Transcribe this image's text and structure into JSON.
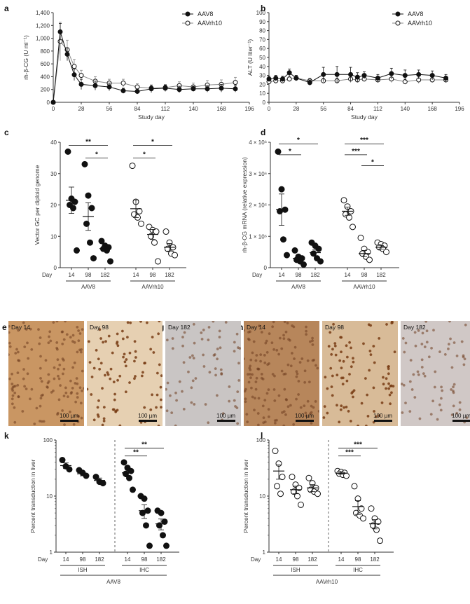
{
  "panel_labels": {
    "a": "a",
    "b": "b",
    "c": "c",
    "d": "d",
    "e": "e",
    "f": "f",
    "g": "g",
    "h": "h",
    "i": "i",
    "j": "j",
    "k": "k",
    "l": "l"
  },
  "micrographs": [
    {
      "letter": "e",
      "label": "Day 14",
      "scale": "100 µm",
      "tone": "#c99663"
    },
    {
      "letter": "f",
      "label": "Day 98",
      "scale": "100 µm",
      "tone": "#e6d0b2"
    },
    {
      "letter": "g",
      "label": "Day 182",
      "scale": "100 µm",
      "tone": "#c9c5c4"
    },
    {
      "letter": "h",
      "label": "Day 14",
      "scale": "100 µm",
      "tone": "#b7865b"
    },
    {
      "letter": "i",
      "label": "Day 98",
      "scale": "100 µm",
      "tone": "#d8bb98"
    },
    {
      "letter": "j",
      "label": "Day 182",
      "scale": "100 µm",
      "tone": "#d0c8c6"
    }
  ],
  "chart_data": [
    {
      "id": "a",
      "type": "line",
      "ylabel": "rh-β-CG (U ml⁻¹)",
      "xlabel": "Study day",
      "xlim": [
        0,
        196
      ],
      "ylim": [
        0,
        1400
      ],
      "xticks": [
        "0",
        "28",
        "56",
        "84",
        "112",
        "140",
        "168",
        "196"
      ],
      "yticks": [
        "0",
        "200",
        "400",
        "600",
        "800",
        "1,000",
        "1,200",
        "1,400"
      ],
      "legend": [
        "AAV8",
        "AAVrh10"
      ],
      "series": [
        {
          "name": "AAV8",
          "filled": true,
          "x": [
            0,
            7,
            14,
            21,
            28,
            42,
            56,
            70,
            84,
            98,
            112,
            126,
            140,
            154,
            168,
            182
          ],
          "y": [
            0,
            1100,
            750,
            430,
            280,
            260,
            240,
            180,
            170,
            210,
            220,
            200,
            210,
            210,
            220,
            210
          ],
          "err": [
            0,
            130,
            100,
            90,
            80,
            70,
            60,
            40,
            40,
            60,
            50,
            50,
            40,
            50,
            60,
            50
          ]
        },
        {
          "name": "AAVrh10",
          "filled": false,
          "x": [
            0,
            7,
            14,
            21,
            28,
            42,
            56,
            70,
            84,
            98,
            112,
            126,
            140,
            154,
            168,
            182
          ],
          "y": [
            0,
            950,
            820,
            560,
            420,
            330,
            300,
            300,
            240,
            220,
            230,
            260,
            240,
            270,
            280,
            310
          ],
          "err": [
            0,
            300,
            150,
            110,
            80,
            70,
            60,
            60,
            50,
            50,
            50,
            60,
            60,
            70,
            70,
            80
          ]
        }
      ]
    },
    {
      "id": "b",
      "type": "line",
      "ylabel": "ALT (U liter⁻¹)",
      "xlabel": "Study day",
      "xlim": [
        0,
        196
      ],
      "ylim": [
        0,
        100
      ],
      "xticks": [
        "0",
        "28",
        "56",
        "84",
        "112",
        "140",
        "168",
        "196"
      ],
      "yticks": [
        "0",
        "10",
        "20",
        "30",
        "40",
        "50",
        "60",
        "70",
        "80",
        "90",
        "100"
      ],
      "legend": [
        "AAV8",
        "AAVrh10"
      ],
      "series": [
        {
          "name": "AAV8",
          "filled": true,
          "x": [
            0,
            7,
            14,
            21,
            28,
            42,
            56,
            70,
            84,
            91,
            98,
            112,
            126,
            140,
            154,
            168,
            182
          ],
          "y": [
            26,
            27,
            26,
            33,
            27,
            22,
            31,
            31,
            31,
            28,
            30,
            27,
            32,
            30,
            31,
            30,
            27
          ],
          "err": [
            3,
            3,
            3,
            4,
            3,
            3,
            8,
            9,
            8,
            5,
            4,
            4,
            6,
            6,
            5,
            5,
            4
          ]
        },
        {
          "name": "AAVrh10",
          "filled": false,
          "x": [
            0,
            7,
            14,
            21,
            28,
            42,
            56,
            70,
            84,
            91,
            98,
            112,
            126,
            140,
            154,
            168,
            182
          ],
          "y": [
            23,
            24,
            24,
            26,
            27,
            24,
            24,
            24,
            26,
            25,
            26,
            25,
            26,
            23,
            25,
            25,
            25
          ],
          "err": [
            3,
            3,
            3,
            3,
            3,
            3,
            3,
            3,
            4,
            3,
            3,
            3,
            4,
            3,
            4,
            3,
            3
          ]
        }
      ]
    },
    {
      "id": "c",
      "type": "scatter",
      "ylabel": "Vector GC per diploid genome",
      "ylim": [
        0,
        40
      ],
      "yticks": [
        "0",
        "10",
        "20",
        "30",
        "40"
      ],
      "day_label": "Day",
      "groups": [
        {
          "day": "14",
          "vector": "AAV8",
          "filled": true,
          "values": [
            37,
            22,
            21,
            20,
            19,
            5.5
          ],
          "mean": 21.5,
          "sem": 4.2
        },
        {
          "day": "98",
          "vector": "AAV8",
          "filled": true,
          "values": [
            33,
            23,
            19,
            14,
            8,
            3
          ],
          "mean": 16.3,
          "sem": 4.4
        },
        {
          "day": "182",
          "vector": "AAV8",
          "filled": true,
          "values": [
            8.5,
            7,
            6.5,
            6,
            5.5,
            2
          ],
          "mean": 6.1,
          "sem": 0.9
        },
        {
          "day": "14",
          "vector": "AAVrh10",
          "filled": false,
          "values": [
            32.5,
            21,
            18,
            17,
            16,
            14
          ],
          "mean": 18.8,
          "sem": 2.8
        },
        {
          "day": "98",
          "vector": "AAVrh10",
          "filled": false,
          "values": [
            13,
            12,
            11.5,
            10,
            8,
            2
          ],
          "mean": 10.6,
          "sem": 1.6
        },
        {
          "day": "182",
          "vector": "AAVrh10",
          "filled": false,
          "values": [
            11.5,
            8,
            6.5,
            6,
            4.5,
            4
          ],
          "mean": 6.5,
          "sem": 1.2
        }
      ],
      "group_labels": [
        "AAV8",
        "AAVrh10"
      ],
      "significance": [
        {
          "from": 0,
          "to": 2,
          "label": "**",
          "level": 39
        },
        {
          "from": 1,
          "to": 2,
          "label": "*",
          "level": 35
        },
        {
          "from": 3,
          "to": 5,
          "label": "*",
          "level": 39
        },
        {
          "from": 3,
          "to": 4,
          "label": "*",
          "level": 35
        }
      ]
    },
    {
      "id": "d",
      "type": "scatter",
      "ylabel": "rh-β-CG mRNA (relative expression)",
      "ylim": [
        0,
        4000000
      ],
      "yticks": [
        "0",
        "1 × 10⁶",
        "2 × 10⁶",
        "3 × 10⁶",
        "4 × 10⁶"
      ],
      "day_label": "Day",
      "groups": [
        {
          "day": "14",
          "vector": "AAV8",
          "filled": true,
          "values": [
            3700000,
            2500000,
            1850000,
            1800000,
            900000,
            400000
          ],
          "mean": 1850000,
          "sem": 500000
        },
        {
          "day": "98",
          "vector": "AAV8",
          "filled": true,
          "values": [
            550000,
            350000,
            300000,
            250000,
            200000,
            100000
          ],
          "mean": 300000,
          "sem": 70000
        },
        {
          "day": "182",
          "vector": "AAV8",
          "filled": true,
          "values": [
            800000,
            700000,
            600000,
            450000,
            300000,
            200000
          ],
          "mean": 480000,
          "sem": 100000
        },
        {
          "day": "14",
          "vector": "AAVrh10",
          "filled": false,
          "values": [
            2150000,
            1950000,
            1800000,
            1700000,
            1600000,
            1300000
          ],
          "mean": 1800000,
          "sem": 130000
        },
        {
          "day": "98",
          "vector": "AAVrh10",
          "filled": false,
          "values": [
            950000,
            600000,
            500000,
            450000,
            350000,
            250000
          ],
          "mean": 450000,
          "sem": 100000
        },
        {
          "day": "182",
          "vector": "AAVrh10",
          "filled": false,
          "values": [
            800000,
            750000,
            700000,
            650000,
            600000,
            500000
          ],
          "mean": 650000,
          "sem": 60000
        }
      ],
      "group_labels": [
        "AAV8",
        "AAVrh10"
      ],
      "significance": [
        {
          "from": 0,
          "to": 2,
          "label": "*",
          "level": 3950000
        },
        {
          "from": 0,
          "to": 1,
          "label": "*",
          "level": 3600000
        },
        {
          "from": 3,
          "to": 5,
          "label": "***",
          "level": 3950000
        },
        {
          "from": 3,
          "to": 4,
          "label": "***",
          "level": 3600000
        },
        {
          "from": 4,
          "to": 5,
          "label": "*",
          "level": 3250000
        }
      ]
    },
    {
      "id": "k",
      "type": "scatter",
      "scale": "log",
      "ylabel": "Percent transduction in liver",
      "ylim": [
        1,
        100
      ],
      "yticks": [
        "1",
        "10",
        "100"
      ],
      "day_label": "Day",
      "groups": [
        {
          "day": "14",
          "method": "ISH",
          "filled": true,
          "values": [
            44,
            34,
            30
          ],
          "mean": 35,
          "sem": 4
        },
        {
          "day": "98",
          "method": "ISH",
          "filled": true,
          "values": [
            29,
            26,
            23
          ],
          "mean": 25,
          "sem": 2
        },
        {
          "day": "182",
          "method": "ISH",
          "filled": true,
          "values": [
            22,
            18,
            17
          ],
          "mean": 19,
          "sem": 2
        },
        {
          "day": "14",
          "method": "IHC",
          "filled": true,
          "values": [
            40,
            32,
            28,
            25,
            21,
            13
          ],
          "mean": 26,
          "sem": 4
        },
        {
          "day": "98",
          "method": "IHC",
          "filled": true,
          "values": [
            10,
            9,
            5.5,
            5,
            3,
            1.3
          ],
          "mean": 5.5,
          "sem": 1.5
        },
        {
          "day": "182",
          "method": "IHC",
          "filled": true,
          "values": [
            5.5,
            5,
            3.5,
            3,
            2,
            1.3
          ],
          "mean": 3.2,
          "sem": 0.7
        }
      ],
      "method_labels": [
        "ISH",
        "IHC"
      ],
      "group_label": "AAV8",
      "significance": [
        {
          "from": 3,
          "to": 5,
          "label": "**",
          "level": 72
        },
        {
          "from": 3,
          "to": 4,
          "label": "**",
          "level": 52
        }
      ]
    },
    {
      "id": "l",
      "type": "scatter",
      "scale": "log",
      "ylabel": "Percent transduction in liver",
      "ylim": [
        1,
        100
      ],
      "yticks": [
        "1",
        "10",
        "100"
      ],
      "day_label": "Day",
      "groups": [
        {
          "day": "14",
          "method": "ISH",
          "filled": false,
          "values": [
            64,
            38,
            22,
            15,
            11
          ],
          "mean": 28,
          "sem": 8
        },
        {
          "day": "98",
          "method": "ISH",
          "filled": false,
          "values": [
            22,
            16,
            14,
            12,
            10,
            7
          ],
          "mean": 13,
          "sem": 2
        },
        {
          "day": "182",
          "method": "ISH",
          "filled": false,
          "values": [
            21,
            17,
            14,
            13,
            12,
            11
          ],
          "mean": 14,
          "sem": 2
        },
        {
          "day": "14",
          "method": "IHC",
          "filled": false,
          "values": [
            28,
            27,
            26,
            25,
            24,
            23
          ],
          "mean": 25.5,
          "sem": 1
        },
        {
          "day": "98",
          "method": "IHC",
          "filled": false,
          "values": [
            15,
            9,
            6,
            5,
            4.5,
            4
          ],
          "mean": 6.5,
          "sem": 1.8
        },
        {
          "day": "182",
          "method": "IHC",
          "filled": false,
          "values": [
            6,
            4,
            3.5,
            3,
            2.5,
            1.6
          ],
          "mean": 3.2,
          "sem": 0.6
        }
      ],
      "method_labels": [
        "ISH",
        "IHC"
      ],
      "group_label": "AAVrh10",
      "significance": [
        {
          "from": 3,
          "to": 5,
          "label": "***",
          "level": 72
        },
        {
          "from": 3,
          "to": 4,
          "label": "***",
          "level": 52
        }
      ]
    }
  ]
}
